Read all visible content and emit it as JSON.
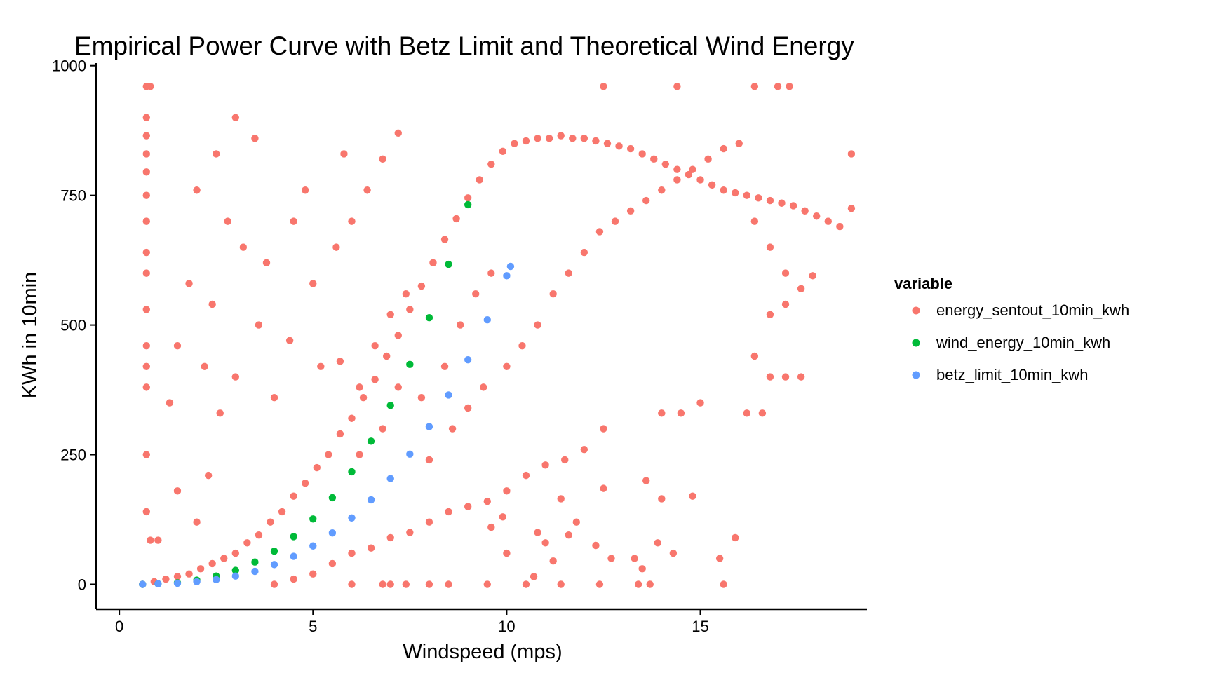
{
  "chart_data": {
    "type": "scatter",
    "title": "Empirical Power Curve with Betz Limit and Theoretical Wind Energy",
    "xlabel": "Windspeed (mps)",
    "ylabel": "KWh in 10min",
    "xlim": [
      -0.6,
      19.3
    ],
    "ylim": [
      -48,
      1005
    ],
    "x_ticks": [
      0,
      5,
      10,
      15
    ],
    "y_ticks": [
      0,
      250,
      500,
      750,
      1000
    ],
    "grid": false,
    "legend": {
      "title": "variable",
      "position": "right",
      "entries": [
        "energy_sentout_10min_kwh",
        "wind_energy_10min_kwh",
        "betz_limit_10min_kwh"
      ]
    },
    "series": [
      {
        "name": "energy_sentout_10min_kwh",
        "color": "#F8766D",
        "points": [
          [
            0.6,
            0
          ],
          [
            0.9,
            5
          ],
          [
            1.2,
            10
          ],
          [
            1.5,
            15
          ],
          [
            1.8,
            20
          ],
          [
            2.1,
            30
          ],
          [
            2.4,
            40
          ],
          [
            2.7,
            50
          ],
          [
            3.0,
            60
          ],
          [
            3.3,
            80
          ],
          [
            3.6,
            95
          ],
          [
            3.9,
            120
          ],
          [
            4.2,
            140
          ],
          [
            4.5,
            170
          ],
          [
            4.8,
            195
          ],
          [
            5.1,
            225
          ],
          [
            5.4,
            250
          ],
          [
            5.7,
            290
          ],
          [
            6.0,
            320
          ],
          [
            6.3,
            360
          ],
          [
            6.6,
            395
          ],
          [
            6.9,
            440
          ],
          [
            7.2,
            480
          ],
          [
            7.5,
            530
          ],
          [
            7.8,
            575
          ],
          [
            8.1,
            620
          ],
          [
            8.4,
            665
          ],
          [
            8.7,
            705
          ],
          [
            9.0,
            745
          ],
          [
            9.3,
            780
          ],
          [
            9.6,
            810
          ],
          [
            9.9,
            835
          ],
          [
            10.2,
            850
          ],
          [
            10.5,
            855
          ],
          [
            10.8,
            860
          ],
          [
            11.1,
            860
          ],
          [
            11.4,
            865
          ],
          [
            11.7,
            860
          ],
          [
            12.0,
            860
          ],
          [
            12.3,
            855
          ],
          [
            12.6,
            850
          ],
          [
            12.9,
            845
          ],
          [
            13.2,
            840
          ],
          [
            13.5,
            830
          ],
          [
            13.8,
            820
          ],
          [
            14.1,
            810
          ],
          [
            14.4,
            800
          ],
          [
            14.7,
            790
          ],
          [
            15.0,
            780
          ],
          [
            15.3,
            770
          ],
          [
            15.6,
            760
          ],
          [
            15.9,
            755
          ],
          [
            16.2,
            750
          ],
          [
            16.5,
            745
          ],
          [
            16.8,
            740
          ],
          [
            17.1,
            735
          ],
          [
            17.4,
            730
          ],
          [
            17.7,
            720
          ],
          [
            18.0,
            710
          ],
          [
            18.3,
            700
          ],
          [
            18.6,
            690
          ],
          [
            18.9,
            830
          ],
          [
            18.9,
            725
          ],
          [
            0.7,
            960
          ],
          [
            0.8,
            960
          ],
          [
            16.4,
            960
          ],
          [
            17.0,
            960
          ],
          [
            17.3,
            960
          ],
          [
            14.4,
            960
          ],
          [
            12.5,
            960
          ],
          [
            0.7,
            900
          ],
          [
            0.7,
            865
          ],
          [
            0.7,
            830
          ],
          [
            0.7,
            795
          ],
          [
            0.7,
            750
          ],
          [
            0.7,
            700
          ],
          [
            0.7,
            640
          ],
          [
            0.7,
            600
          ],
          [
            0.7,
            530
          ],
          [
            0.7,
            460
          ],
          [
            0.7,
            420
          ],
          [
            0.7,
            380
          ],
          [
            0.7,
            250
          ],
          [
            0.7,
            140
          ],
          [
            0.8,
            85
          ],
          [
            1.0,
            85
          ],
          [
            1.5,
            180
          ],
          [
            2.0,
            120
          ],
          [
            2.3,
            210
          ],
          [
            3.0,
            900
          ],
          [
            2.5,
            830
          ],
          [
            3.5,
            860
          ],
          [
            2.0,
            760
          ],
          [
            2.8,
            700
          ],
          [
            3.2,
            650
          ],
          [
            3.8,
            620
          ],
          [
            1.8,
            580
          ],
          [
            2.4,
            540
          ],
          [
            3.6,
            500
          ],
          [
            4.4,
            470
          ],
          [
            1.5,
            460
          ],
          [
            2.2,
            420
          ],
          [
            3.0,
            400
          ],
          [
            4.0,
            360
          ],
          [
            1.3,
            350
          ],
          [
            2.6,
            330
          ],
          [
            5.0,
            580
          ],
          [
            5.6,
            650
          ],
          [
            6.0,
            700
          ],
          [
            6.4,
            760
          ],
          [
            6.8,
            820
          ],
          [
            7.2,
            870
          ],
          [
            5.8,
            830
          ],
          [
            4.8,
            760
          ],
          [
            4.5,
            700
          ],
          [
            5.2,
            420
          ],
          [
            5.7,
            430
          ],
          [
            6.2,
            380
          ],
          [
            6.6,
            460
          ],
          [
            7.0,
            520
          ],
          [
            7.4,
            560
          ],
          [
            6.2,
            250
          ],
          [
            6.8,
            300
          ],
          [
            7.2,
            380
          ],
          [
            7.8,
            360
          ],
          [
            8.4,
            420
          ],
          [
            8.8,
            500
          ],
          [
            9.2,
            560
          ],
          [
            9.6,
            600
          ],
          [
            8.0,
            240
          ],
          [
            8.6,
            300
          ],
          [
            9.0,
            340
          ],
          [
            9.4,
            380
          ],
          [
            10.0,
            420
          ],
          [
            10.4,
            460
          ],
          [
            10.8,
            500
          ],
          [
            11.2,
            560
          ],
          [
            11.6,
            600
          ],
          [
            12.0,
            640
          ],
          [
            12.4,
            680
          ],
          [
            12.8,
            700
          ],
          [
            13.2,
            720
          ],
          [
            13.6,
            740
          ],
          [
            14.0,
            760
          ],
          [
            14.4,
            780
          ],
          [
            14.8,
            800
          ],
          [
            15.2,
            820
          ],
          [
            15.6,
            840
          ],
          [
            16.0,
            850
          ],
          [
            16.4,
            700
          ],
          [
            16.8,
            650
          ],
          [
            17.2,
            600
          ],
          [
            17.6,
            570
          ],
          [
            17.9,
            595
          ],
          [
            17.2,
            540
          ],
          [
            16.8,
            520
          ],
          [
            16.4,
            440
          ],
          [
            16.8,
            400
          ],
          [
            17.2,
            400
          ],
          [
            17.6,
            400
          ],
          [
            16.2,
            330
          ],
          [
            16.6,
            330
          ],
          [
            14.0,
            330
          ],
          [
            14.5,
            330
          ],
          [
            15.0,
            350
          ],
          [
            12.5,
            300
          ],
          [
            12.0,
            260
          ],
          [
            11.5,
            240
          ],
          [
            11.0,
            230
          ],
          [
            10.5,
            210
          ],
          [
            10.0,
            180
          ],
          [
            9.5,
            160
          ],
          [
            9.0,
            150
          ],
          [
            8.5,
            140
          ],
          [
            8.0,
            120
          ],
          [
            7.5,
            100
          ],
          [
            7.0,
            90
          ],
          [
            6.5,
            70
          ],
          [
            6.0,
            60
          ],
          [
            5.5,
            40
          ],
          [
            5.0,
            20
          ],
          [
            4.5,
            10
          ],
          [
            4.0,
            0
          ],
          [
            6.0,
            0
          ],
          [
            6.8,
            0
          ],
          [
            7.0,
            0
          ],
          [
            7.4,
            0
          ],
          [
            8.0,
            0
          ],
          [
            8.5,
            0
          ],
          [
            9.5,
            0
          ],
          [
            10.5,
            0
          ],
          [
            11.4,
            0
          ],
          [
            12.4,
            0
          ],
          [
            13.4,
            0
          ],
          [
            13.7,
            0
          ],
          [
            15.6,
            0
          ],
          [
            12.5,
            185
          ],
          [
            11.4,
            165
          ],
          [
            13.6,
            200
          ],
          [
            14.0,
            165
          ],
          [
            14.8,
            170
          ],
          [
            13.5,
            30
          ],
          [
            13.9,
            80
          ],
          [
            13.3,
            50
          ],
          [
            14.3,
            60
          ],
          [
            15.5,
            50
          ],
          [
            15.9,
            90
          ],
          [
            11.8,
            120
          ],
          [
            10.8,
            100
          ],
          [
            11.0,
            80
          ],
          [
            10.0,
            60
          ],
          [
            12.3,
            75
          ],
          [
            12.7,
            50
          ],
          [
            11.2,
            45
          ],
          [
            10.7,
            15
          ],
          [
            11.6,
            95
          ],
          [
            9.9,
            130
          ],
          [
            9.6,
            110
          ]
        ]
      },
      {
        "name": "wind_energy_10min_kwh",
        "color": "#00BA38",
        "points": [
          [
            0.6,
            0
          ],
          [
            1.0,
            1
          ],
          [
            1.5,
            3
          ],
          [
            2.0,
            8
          ],
          [
            2.5,
            16
          ],
          [
            3.0,
            27
          ],
          [
            3.5,
            43
          ],
          [
            4.0,
            64
          ],
          [
            4.5,
            92
          ],
          [
            5.0,
            126
          ],
          [
            5.5,
            167
          ],
          [
            6.0,
            217
          ],
          [
            6.5,
            276
          ],
          [
            7.0,
            345
          ],
          [
            7.5,
            424
          ],
          [
            8.0,
            514
          ],
          [
            8.5,
            617
          ],
          [
            9.0,
            732
          ]
        ]
      },
      {
        "name": "betz_limit_10min_kwh",
        "color": "#619CFF",
        "points": [
          [
            0.6,
            0
          ],
          [
            1.0,
            1
          ],
          [
            1.5,
            2
          ],
          [
            2.0,
            5
          ],
          [
            2.5,
            9
          ],
          [
            3.0,
            16
          ],
          [
            3.5,
            25
          ],
          [
            4.0,
            38
          ],
          [
            4.5,
            54
          ],
          [
            5.0,
            74
          ],
          [
            5.5,
            99
          ],
          [
            6.0,
            128
          ],
          [
            6.5,
            163
          ],
          [
            7.0,
            204
          ],
          [
            7.5,
            251
          ],
          [
            8.0,
            304
          ],
          [
            8.5,
            365
          ],
          [
            9.0,
            433
          ],
          [
            9.5,
            510
          ],
          [
            10.0,
            595
          ],
          [
            10.1,
            613
          ]
        ]
      }
    ]
  }
}
